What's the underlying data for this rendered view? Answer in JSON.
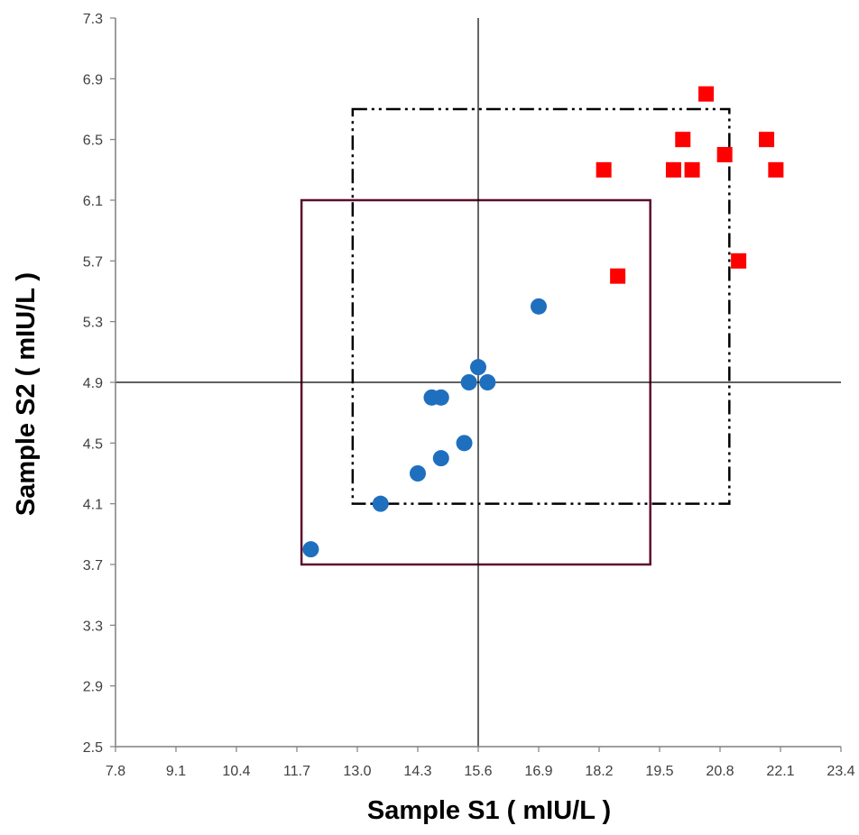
{
  "chart_data": {
    "type": "scatter",
    "title": "",
    "xlabel": "Sample S1 ( mIU/L )",
    "ylabel": "Sample S2 ( mIU/L )",
    "xlim": [
      7.8,
      23.4
    ],
    "ylim": [
      2.5,
      7.3
    ],
    "x_ticks": [
      "7.8",
      "9.1",
      "10.4",
      "11.7",
      "13.0",
      "14.3",
      "15.6",
      "16.9",
      "18.2",
      "19.5",
      "20.8",
      "22.1",
      "23.4"
    ],
    "y_ticks": [
      "2.5",
      "2.9",
      "3.3",
      "3.7",
      "4.1",
      "4.5",
      "4.9",
      "5.3",
      "5.7",
      "6.1",
      "6.5",
      "6.9",
      "7.3"
    ],
    "grid": false,
    "series": [
      {
        "marker": "circle",
        "color": "#1f6fbf",
        "points": [
          [
            12.0,
            3.8
          ],
          [
            13.5,
            4.1
          ],
          [
            14.3,
            4.3
          ],
          [
            14.8,
            4.4
          ],
          [
            15.3,
            4.5
          ],
          [
            14.6,
            4.8
          ],
          [
            14.8,
            4.8
          ],
          [
            15.4,
            4.9
          ],
          [
            15.8,
            4.9
          ],
          [
            15.6,
            5.0
          ],
          [
            16.9,
            5.4
          ]
        ]
      },
      {
        "marker": "square",
        "color": "#ff0000",
        "points": [
          [
            18.3,
            6.3
          ],
          [
            18.6,
            5.6
          ],
          [
            19.8,
            6.3
          ],
          [
            20.0,
            6.5
          ],
          [
            20.2,
            6.3
          ],
          [
            20.5,
            6.8
          ],
          [
            20.9,
            6.4
          ],
          [
            21.2,
            5.7
          ],
          [
            21.8,
            6.5
          ],
          [
            22.0,
            6.3
          ]
        ]
      }
    ],
    "reference_lines": {
      "vertical_x": 15.6,
      "horizontal_y": 4.9
    },
    "regions": [
      {
        "style": "solid",
        "color": "#5c0d2e",
        "x_range": [
          11.8,
          19.3
        ],
        "y_range": [
          3.7,
          6.1
        ]
      },
      {
        "style": "dash-dot-dot",
        "color": "#000000",
        "x_range": [
          12.9,
          21.0
        ],
        "y_range": [
          4.1,
          6.7
        ]
      }
    ]
  }
}
